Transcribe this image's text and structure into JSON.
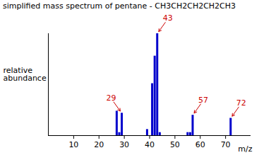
{
  "chart_data": {
    "type": "bar",
    "title": "simplified mass spectrum of pentane  -  CH3CH2CH2CH2CH3",
    "x_label": "m/z",
    "y_label": "relative abundance",
    "x": [
      27,
      28,
      29,
      39,
      41,
      42,
      43,
      44,
      55,
      56,
      57,
      72
    ],
    "values": [
      24,
      3,
      22,
      6,
      51,
      78,
      100,
      3,
      3,
      3,
      20,
      17
    ],
    "color": "#0000cc",
    "xlim": [
      0,
      80
    ],
    "xticks": [
      10,
      20,
      30,
      40,
      50,
      60,
      70
    ],
    "ylim": [
      0,
      100
    ],
    "tick_labels": "x",
    "grid": false,
    "annotations": [
      {
        "x": 29,
        "label": "29"
      },
      {
        "x": 43,
        "label": "43"
      },
      {
        "x": 57,
        "label": "57"
      },
      {
        "x": 72,
        "label": "72"
      }
    ]
  }
}
